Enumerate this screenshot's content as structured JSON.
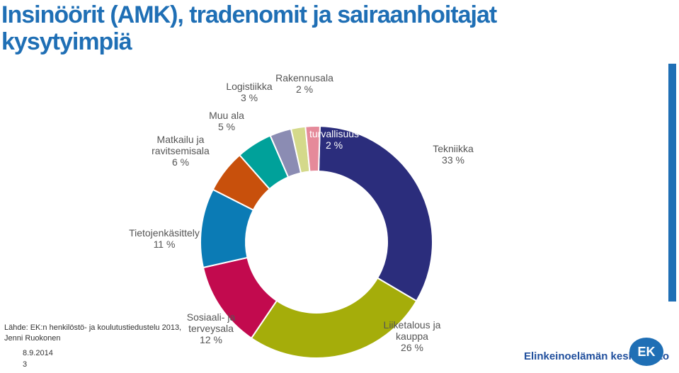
{
  "title": "Insinöörit (AMK), tradenomit ja sairaanhoitajat kysytyimpiä",
  "source": "Lähde: EK:n henkilöstö- ja koulutustiedustelu 2013,\nJenni Ruokonen",
  "date": "8.9.2014",
  "page_number": "3",
  "logo_text": "Elinkeinoelämän keskusliitto",
  "logo_mark": "EK",
  "chart_data": {
    "type": "donut",
    "categories": [
      "Tekniikka",
      "Liiketalous ja\nkauppa",
      "Sosiaali- ja\nterveysala",
      "Tietojenkäsittely",
      "Matkailu ja\nravitsemisala",
      "Muu ala",
      "Logistiikka",
      "Rakennusala",
      "Kiinteistöpalv. ja\nturvallisuus"
    ],
    "values": [
      33,
      26,
      12,
      11,
      6,
      5,
      3,
      2,
      2
    ],
    "value_labels": [
      "33 %",
      "26 %",
      "12 %",
      "11 %",
      "6 %",
      "5 %",
      "3 %",
      "2 %",
      "2 %"
    ],
    "colors": [
      "#2b2d7c",
      "#a5ad0a",
      "#c20a4e",
      "#0b7bb5",
      "#c8500c",
      "#00a19a",
      "#8b8cb3",
      "#d4d98a",
      "#e58a9a"
    ]
  }
}
